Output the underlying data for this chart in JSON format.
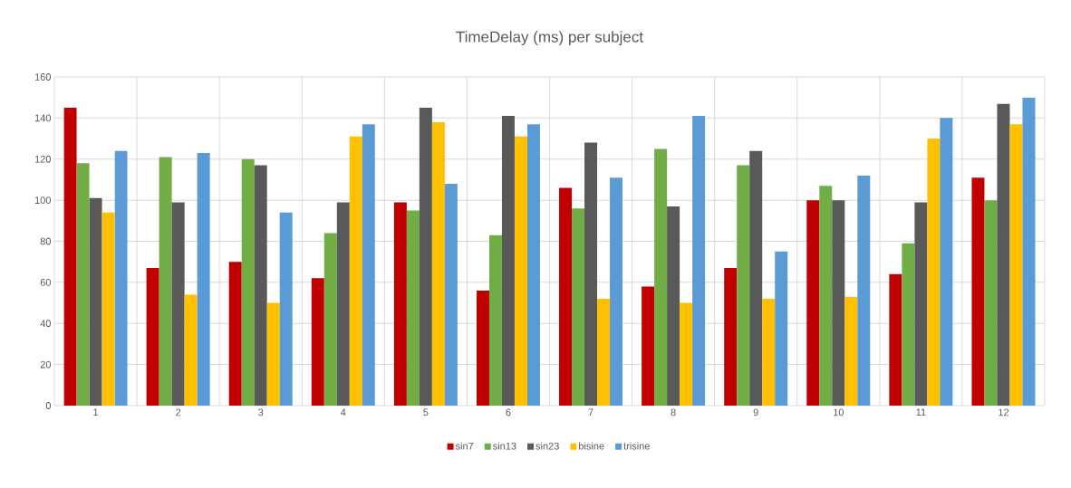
{
  "chart_data": {
    "type": "bar",
    "title": "TimeDelay (ms) per subject",
    "categories": [
      "1",
      "2",
      "3",
      "4",
      "5",
      "6",
      "7",
      "8",
      "9",
      "10",
      "11",
      "12"
    ],
    "series": [
      {
        "name": "sin7",
        "color": "#c00000",
        "values": [
          145,
          67,
          70,
          62,
          99,
          56,
          106,
          58,
          67,
          100,
          64,
          111
        ]
      },
      {
        "name": "sin13",
        "color": "#70ad47",
        "values": [
          118,
          121,
          120,
          84,
          95,
          83,
          96,
          125,
          117,
          107,
          79,
          100
        ]
      },
      {
        "name": "sin23",
        "color": "#595959",
        "values": [
          101,
          99,
          117,
          99,
          145,
          141,
          128,
          97,
          124,
          100,
          99,
          147
        ]
      },
      {
        "name": "bisine",
        "color": "#ffc000",
        "values": [
          94,
          54,
          50,
          131,
          138,
          131,
          52,
          50,
          52,
          53,
          130,
          137
        ]
      },
      {
        "name": "trisine",
        "color": "#5b9bd5",
        "values": [
          124,
          123,
          94,
          137,
          108,
          137,
          111,
          141,
          75,
          112,
          140,
          150
        ]
      }
    ],
    "ylim": [
      0,
      160
    ],
    "yticks": [
      0,
      20,
      40,
      60,
      80,
      100,
      120,
      140,
      160
    ],
    "grid": true,
    "legend": "bottom"
  }
}
